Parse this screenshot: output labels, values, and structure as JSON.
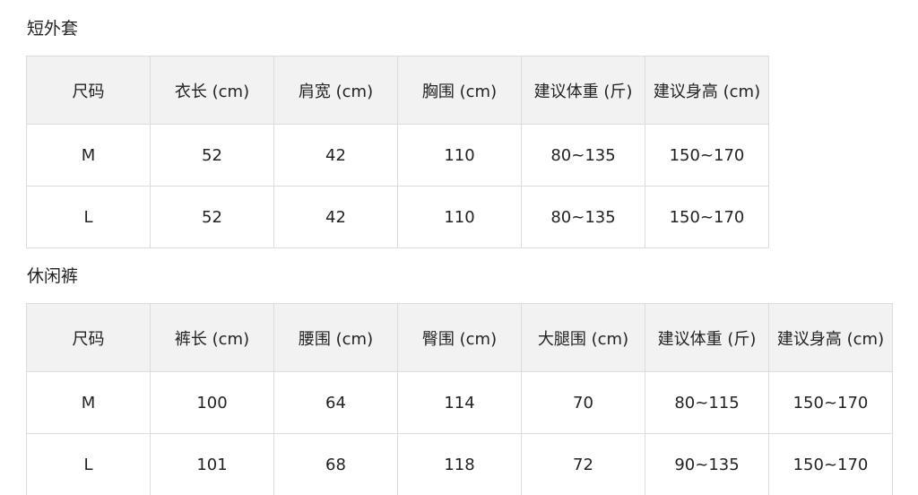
{
  "tables": [
    {
      "title": "短外套",
      "header": [
        "尺码",
        "衣长 (cm)",
        "肩宽 (cm)",
        "胸围 (cm)",
        "建议体重 (斤)",
        "建议身高 (cm)"
      ],
      "rows": [
        [
          "M",
          "52",
          "42",
          "110",
          "80~135",
          "150~170"
        ],
        [
          "L",
          "52",
          "42",
          "110",
          "80~135",
          "150~170"
        ]
      ]
    },
    {
      "title": "休闲裤",
      "header": [
        "尺码",
        "裤长 (cm)",
        "腰围 (cm)",
        "臀围 (cm)",
        "大腿围 (cm)",
        "建议体重 (斤)",
        "建议身高 (cm)"
      ],
      "rows": [
        [
          "M",
          "100",
          "64",
          "114",
          "70",
          "80~115",
          "150~170"
        ],
        [
          "L",
          "101",
          "68",
          "118",
          "72",
          "90~135",
          "150~170"
        ]
      ]
    }
  ]
}
